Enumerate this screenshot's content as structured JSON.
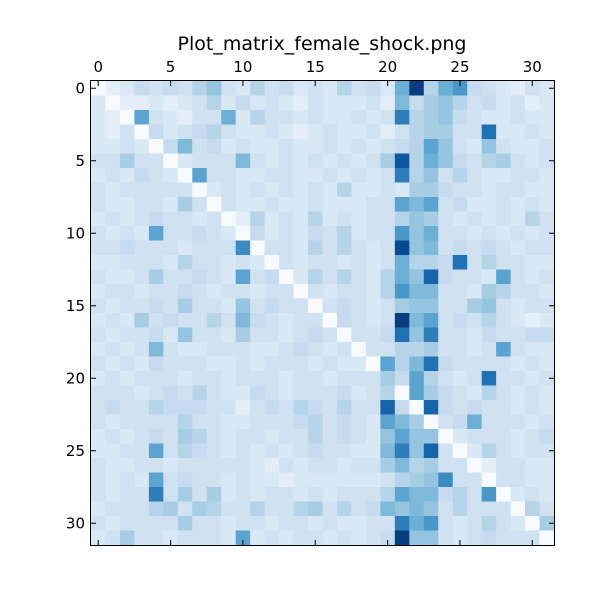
{
  "chart_data": {
    "type": "heatmap",
    "title": "Plot_matrix_female_shock.png",
    "xlabel": "",
    "ylabel": "",
    "n_rows": 32,
    "n_cols": 32,
    "x_ticks": [
      0,
      5,
      10,
      15,
      20,
      25,
      30
    ],
    "y_ticks": [
      0,
      5,
      10,
      15,
      20,
      25,
      30
    ],
    "x_axis_position": "top",
    "value_range": [
      0,
      1
    ],
    "colormap": [
      "#f7fbff",
      "#deebf7",
      "#c6dbef",
      "#9ecae1",
      "#6baed6",
      "#4292c6",
      "#2171b5",
      "#08519c",
      "#08306b"
    ],
    "grid": false,
    "legend": "none",
    "values": [
      [
        0.0,
        0.1,
        0.15,
        0.25,
        0.2,
        0.25,
        0.2,
        0.3,
        0.4,
        0.2,
        0.15,
        0.3,
        0.2,
        0.25,
        0.15,
        0.2,
        0.15,
        0.3,
        0.2,
        0.25,
        0.15,
        0.5,
        0.95,
        0.3,
        0.5,
        0.6,
        0.25,
        0.2,
        0.15,
        0.1,
        0.2,
        0.15
      ],
      [
        0.15,
        0.0,
        0.1,
        0.1,
        0.15,
        0.1,
        0.15,
        0.2,
        0.3,
        0.15,
        0.25,
        0.15,
        0.2,
        0.15,
        0.1,
        0.2,
        0.15,
        0.15,
        0.15,
        0.2,
        0.1,
        0.45,
        0.25,
        0.35,
        0.4,
        0.3,
        0.2,
        0.25,
        0.15,
        0.2,
        0.1,
        0.15
      ],
      [
        0.15,
        0.1,
        0.0,
        0.55,
        0.2,
        0.15,
        0.1,
        0.2,
        0.2,
        0.5,
        0.15,
        0.3,
        0.2,
        0.2,
        0.15,
        0.2,
        0.15,
        0.15,
        0.2,
        0.15,
        0.2,
        0.7,
        0.3,
        0.35,
        0.4,
        0.25,
        0.2,
        0.15,
        0.15,
        0.2,
        0.15,
        0.15
      ],
      [
        0.15,
        0.1,
        0.2,
        0.0,
        0.25,
        0.15,
        0.2,
        0.25,
        0.3,
        0.2,
        0.15,
        0.15,
        0.2,
        0.15,
        0.1,
        0.15,
        0.2,
        0.15,
        0.15,
        0.2,
        0.1,
        0.2,
        0.3,
        0.35,
        0.35,
        0.2,
        0.2,
        0.75,
        0.15,
        0.15,
        0.2,
        0.15
      ],
      [
        0.15,
        0.15,
        0.2,
        0.15,
        0.0,
        0.25,
        0.45,
        0.2,
        0.25,
        0.15,
        0.2,
        0.15,
        0.15,
        0.2,
        0.15,
        0.15,
        0.2,
        0.15,
        0.2,
        0.15,
        0.2,
        0.25,
        0.3,
        0.55,
        0.4,
        0.2,
        0.15,
        0.4,
        0.2,
        0.15,
        0.15,
        0.2
      ],
      [
        0.2,
        0.2,
        0.35,
        0.2,
        0.2,
        0.0,
        0.15,
        0.2,
        0.2,
        0.2,
        0.45,
        0.2,
        0.15,
        0.2,
        0.15,
        0.2,
        0.15,
        0.2,
        0.15,
        0.2,
        0.35,
        0.85,
        0.3,
        0.5,
        0.4,
        0.25,
        0.2,
        0.3,
        0.35,
        0.2,
        0.15,
        0.2
      ],
      [
        0.15,
        0.2,
        0.15,
        0.25,
        0.2,
        0.15,
        0.0,
        0.55,
        0.2,
        0.2,
        0.15,
        0.15,
        0.2,
        0.2,
        0.15,
        0.15,
        0.2,
        0.15,
        0.2,
        0.15,
        0.2,
        0.7,
        0.3,
        0.4,
        0.2,
        0.3,
        0.2,
        0.15,
        0.15,
        0.2,
        0.2,
        0.15
      ],
      [
        0.2,
        0.15,
        0.2,
        0.2,
        0.2,
        0.2,
        0.2,
        0.0,
        0.15,
        0.2,
        0.15,
        0.2,
        0.15,
        0.2,
        0.15,
        0.2,
        0.15,
        0.3,
        0.15,
        0.15,
        0.2,
        0.15,
        0.35,
        0.35,
        0.25,
        0.2,
        0.2,
        0.15,
        0.2,
        0.2,
        0.15,
        0.15
      ],
      [
        0.2,
        0.15,
        0.15,
        0.2,
        0.2,
        0.15,
        0.35,
        0.2,
        0.0,
        0.2,
        0.15,
        0.15,
        0.2,
        0.15,
        0.15,
        0.2,
        0.15,
        0.15,
        0.15,
        0.2,
        0.2,
        0.55,
        0.45,
        0.55,
        0.2,
        0.25,
        0.15,
        0.15,
        0.2,
        0.15,
        0.2,
        0.15
      ],
      [
        0.15,
        0.2,
        0.15,
        0.2,
        0.25,
        0.2,
        0.2,
        0.15,
        0.2,
        0.0,
        0.1,
        0.3,
        0.15,
        0.2,
        0.15,
        0.3,
        0.15,
        0.2,
        0.15,
        0.2,
        0.2,
        0.3,
        0.4,
        0.35,
        0.2,
        0.15,
        0.2,
        0.15,
        0.2,
        0.15,
        0.3,
        0.2
      ],
      [
        0.2,
        0.15,
        0.2,
        0.15,
        0.55,
        0.2,
        0.2,
        0.25,
        0.2,
        0.15,
        0.0,
        0.25,
        0.15,
        0.2,
        0.15,
        0.25,
        0.2,
        0.3,
        0.15,
        0.2,
        0.2,
        0.6,
        0.4,
        0.5,
        0.2,
        0.2,
        0.15,
        0.2,
        0.15,
        0.2,
        0.15,
        0.2
      ],
      [
        0.2,
        0.2,
        0.25,
        0.2,
        0.2,
        0.2,
        0.15,
        0.2,
        0.2,
        0.2,
        0.65,
        0.0,
        0.2,
        0.2,
        0.15,
        0.3,
        0.2,
        0.3,
        0.2,
        0.15,
        0.2,
        0.9,
        0.4,
        0.45,
        0.2,
        0.25,
        0.2,
        0.25,
        0.2,
        0.15,
        0.2,
        0.2
      ],
      [
        0.15,
        0.15,
        0.2,
        0.2,
        0.2,
        0.15,
        0.3,
        0.2,
        0.2,
        0.15,
        0.2,
        0.15,
        0.0,
        0.2,
        0.15,
        0.2,
        0.2,
        0.15,
        0.2,
        0.15,
        0.2,
        0.5,
        0.3,
        0.3,
        0.25,
        0.75,
        0.2,
        0.3,
        0.2,
        0.2,
        0.15,
        0.15
      ],
      [
        0.2,
        0.15,
        0.15,
        0.2,
        0.35,
        0.2,
        0.2,
        0.25,
        0.2,
        0.15,
        0.55,
        0.2,
        0.25,
        0.0,
        0.15,
        0.3,
        0.2,
        0.3,
        0.2,
        0.15,
        0.3,
        0.5,
        0.4,
        0.8,
        0.25,
        0.2,
        0.2,
        0.15,
        0.55,
        0.2,
        0.15,
        0.2
      ],
      [
        0.15,
        0.2,
        0.2,
        0.15,
        0.2,
        0.2,
        0.25,
        0.2,
        0.15,
        0.2,
        0.2,
        0.15,
        0.2,
        0.2,
        0.0,
        0.2,
        0.15,
        0.2,
        0.2,
        0.15,
        0.3,
        0.6,
        0.45,
        0.45,
        0.2,
        0.2,
        0.15,
        0.35,
        0.3,
        0.2,
        0.2,
        0.15
      ],
      [
        0.2,
        0.15,
        0.2,
        0.2,
        0.25,
        0.2,
        0.35,
        0.2,
        0.2,
        0.15,
        0.4,
        0.2,
        0.25,
        0.2,
        0.2,
        0.0,
        0.2,
        0.25,
        0.2,
        0.15,
        0.2,
        0.35,
        0.4,
        0.4,
        0.2,
        0.2,
        0.35,
        0.4,
        0.2,
        0.15,
        0.2,
        0.2
      ],
      [
        0.15,
        0.2,
        0.15,
        0.35,
        0.2,
        0.25,
        0.2,
        0.2,
        0.3,
        0.2,
        0.45,
        0.25,
        0.2,
        0.15,
        0.2,
        0.2,
        0.0,
        0.25,
        0.2,
        0.15,
        0.2,
        0.95,
        0.45,
        0.55,
        0.2,
        0.25,
        0.2,
        0.3,
        0.2,
        0.15,
        0.1,
        0.15
      ],
      [
        0.2,
        0.15,
        0.2,
        0.2,
        0.25,
        0.15,
        0.4,
        0.2,
        0.2,
        0.15,
        0.35,
        0.2,
        0.2,
        0.15,
        0.2,
        0.25,
        0.2,
        0.0,
        0.2,
        0.2,
        0.25,
        0.75,
        0.4,
        0.7,
        0.2,
        0.2,
        0.15,
        0.25,
        0.2,
        0.2,
        0.25,
        0.25
      ],
      [
        0.15,
        0.2,
        0.15,
        0.2,
        0.45,
        0.2,
        0.15,
        0.15,
        0.2,
        0.2,
        0.2,
        0.15,
        0.15,
        0.2,
        0.25,
        0.2,
        0.15,
        0.2,
        0.0,
        0.2,
        0.2,
        0.3,
        0.3,
        0.35,
        0.2,
        0.2,
        0.15,
        0.2,
        0.55,
        0.2,
        0.15,
        0.15
      ],
      [
        0.2,
        0.15,
        0.2,
        0.15,
        0.25,
        0.2,
        0.2,
        0.2,
        0.15,
        0.15,
        0.2,
        0.15,
        0.2,
        0.2,
        0.2,
        0.15,
        0.2,
        0.15,
        0.15,
        0.0,
        0.55,
        0.3,
        0.45,
        0.75,
        0.25,
        0.2,
        0.2,
        0.2,
        0.2,
        0.15,
        0.2,
        0.15
      ],
      [
        0.15,
        0.2,
        0.15,
        0.2,
        0.2,
        0.2,
        0.15,
        0.2,
        0.2,
        0.15,
        0.2,
        0.2,
        0.2,
        0.15,
        0.2,
        0.2,
        0.15,
        0.2,
        0.2,
        0.2,
        0.35,
        0.25,
        0.55,
        0.3,
        0.2,
        0.15,
        0.2,
        0.75,
        0.2,
        0.2,
        0.15,
        0.2
      ],
      [
        0.2,
        0.2,
        0.2,
        0.15,
        0.2,
        0.25,
        0.2,
        0.3,
        0.2,
        0.15,
        0.15,
        0.25,
        0.2,
        0.15,
        0.2,
        0.2,
        0.2,
        0.25,
        0.15,
        0.2,
        0.3,
        0.0,
        0.55,
        0.35,
        0.25,
        0.2,
        0.15,
        0.3,
        0.2,
        0.15,
        0.2,
        0.15
      ],
      [
        0.2,
        0.25,
        0.2,
        0.2,
        0.3,
        0.25,
        0.25,
        0.25,
        0.2,
        0.2,
        0.1,
        0.2,
        0.25,
        0.2,
        0.3,
        0.25,
        0.2,
        0.3,
        0.2,
        0.2,
        0.8,
        0.25,
        0.0,
        0.8,
        0.25,
        0.2,
        0.25,
        0.2,
        0.2,
        0.15,
        0.2,
        0.15
      ],
      [
        0.2,
        0.15,
        0.2,
        0.2,
        0.2,
        0.2,
        0.3,
        0.2,
        0.2,
        0.15,
        0.15,
        0.2,
        0.2,
        0.2,
        0.25,
        0.3,
        0.2,
        0.25,
        0.2,
        0.15,
        0.55,
        0.45,
        0.35,
        0.0,
        0.2,
        0.25,
        0.5,
        0.2,
        0.2,
        0.2,
        0.15,
        0.2
      ],
      [
        0.15,
        0.2,
        0.15,
        0.2,
        0.25,
        0.2,
        0.35,
        0.3,
        0.2,
        0.15,
        0.2,
        0.2,
        0.15,
        0.2,
        0.2,
        0.3,
        0.2,
        0.25,
        0.2,
        0.15,
        0.4,
        0.55,
        0.4,
        0.4,
        0.0,
        0.15,
        0.2,
        0.2,
        0.2,
        0.15,
        0.2,
        0.25
      ],
      [
        0.15,
        0.15,
        0.2,
        0.2,
        0.55,
        0.2,
        0.3,
        0.25,
        0.2,
        0.15,
        0.2,
        0.15,
        0.2,
        0.15,
        0.2,
        0.25,
        0.2,
        0.2,
        0.15,
        0.15,
        0.45,
        0.7,
        0.4,
        0.8,
        0.2,
        0.0,
        0.15,
        0.3,
        0.2,
        0.15,
        0.2,
        0.2
      ],
      [
        0.2,
        0.15,
        0.15,
        0.2,
        0.2,
        0.15,
        0.2,
        0.2,
        0.2,
        0.2,
        0.2,
        0.15,
        0.1,
        0.2,
        0.15,
        0.2,
        0.2,
        0.15,
        0.2,
        0.2,
        0.35,
        0.45,
        0.3,
        0.35,
        0.2,
        0.2,
        0.0,
        0.1,
        0.2,
        0.2,
        0.15,
        0.15
      ],
      [
        0.2,
        0.15,
        0.2,
        0.15,
        0.55,
        0.2,
        0.25,
        0.2,
        0.2,
        0.15,
        0.2,
        0.15,
        0.15,
        0.1,
        0.15,
        0.15,
        0.15,
        0.15,
        0.15,
        0.15,
        0.2,
        0.3,
        0.35,
        0.4,
        0.65,
        0.2,
        0.2,
        0.0,
        0.2,
        0.2,
        0.15,
        0.15
      ],
      [
        0.2,
        0.15,
        0.2,
        0.2,
        0.7,
        0.2,
        0.35,
        0.2,
        0.35,
        0.15,
        0.2,
        0.15,
        0.2,
        0.2,
        0.15,
        0.2,
        0.15,
        0.2,
        0.2,
        0.2,
        0.3,
        0.55,
        0.45,
        0.45,
        0.25,
        0.3,
        0.2,
        0.6,
        0.0,
        0.15,
        0.2,
        0.15
      ],
      [
        0.15,
        0.2,
        0.2,
        0.2,
        0.3,
        0.35,
        0.2,
        0.35,
        0.3,
        0.2,
        0.2,
        0.3,
        0.2,
        0.2,
        0.3,
        0.35,
        0.2,
        0.3,
        0.2,
        0.25,
        0.45,
        0.4,
        0.45,
        0.4,
        0.2,
        0.3,
        0.2,
        0.2,
        0.2,
        0.0,
        0.3,
        0.2
      ],
      [
        0.2,
        0.15,
        0.2,
        0.2,
        0.2,
        0.2,
        0.35,
        0.2,
        0.2,
        0.15,
        0.2,
        0.2,
        0.15,
        0.2,
        0.2,
        0.15,
        0.2,
        0.15,
        0.15,
        0.2,
        0.2,
        0.7,
        0.5,
        0.6,
        0.2,
        0.15,
        0.2,
        0.3,
        0.2,
        0.15,
        0.0,
        0.35
      ],
      [
        0.15,
        0.2,
        0.35,
        0.2,
        0.2,
        0.15,
        0.2,
        0.2,
        0.2,
        0.15,
        0.55,
        0.15,
        0.2,
        0.15,
        0.2,
        0.2,
        0.15,
        0.2,
        0.15,
        0.2,
        0.25,
        0.95,
        0.4,
        0.4,
        0.2,
        0.15,
        0.2,
        0.25,
        0.2,
        0.2,
        0.2,
        0.0
      ]
    ]
  }
}
